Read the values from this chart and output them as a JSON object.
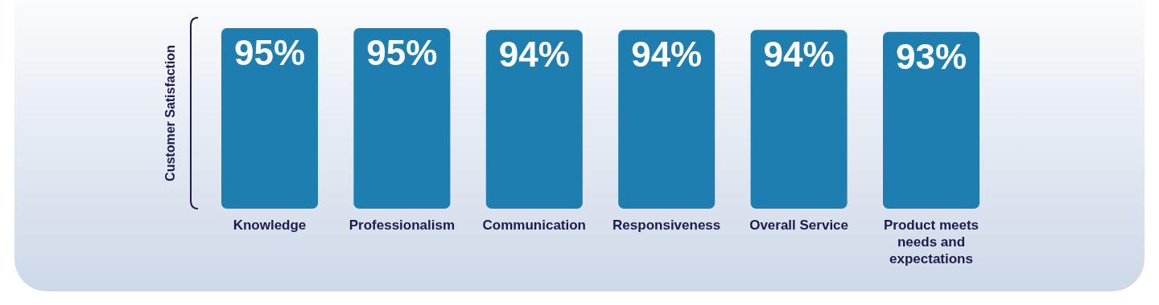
{
  "chart_data": {
    "type": "bar",
    "ylabel": "Customer Satisfaction",
    "categories": [
      "Knowledge",
      "Professionalism",
      "Communication",
      "Responsiveness",
      "Overall Service",
      "Product meets needs and expectations"
    ],
    "values": [
      95,
      95,
      94,
      94,
      94,
      93
    ],
    "color": "#1f7eb0",
    "value_labels": [
      "95%",
      "95%",
      "94%",
      "94%",
      "94%",
      "93%"
    ]
  }
}
